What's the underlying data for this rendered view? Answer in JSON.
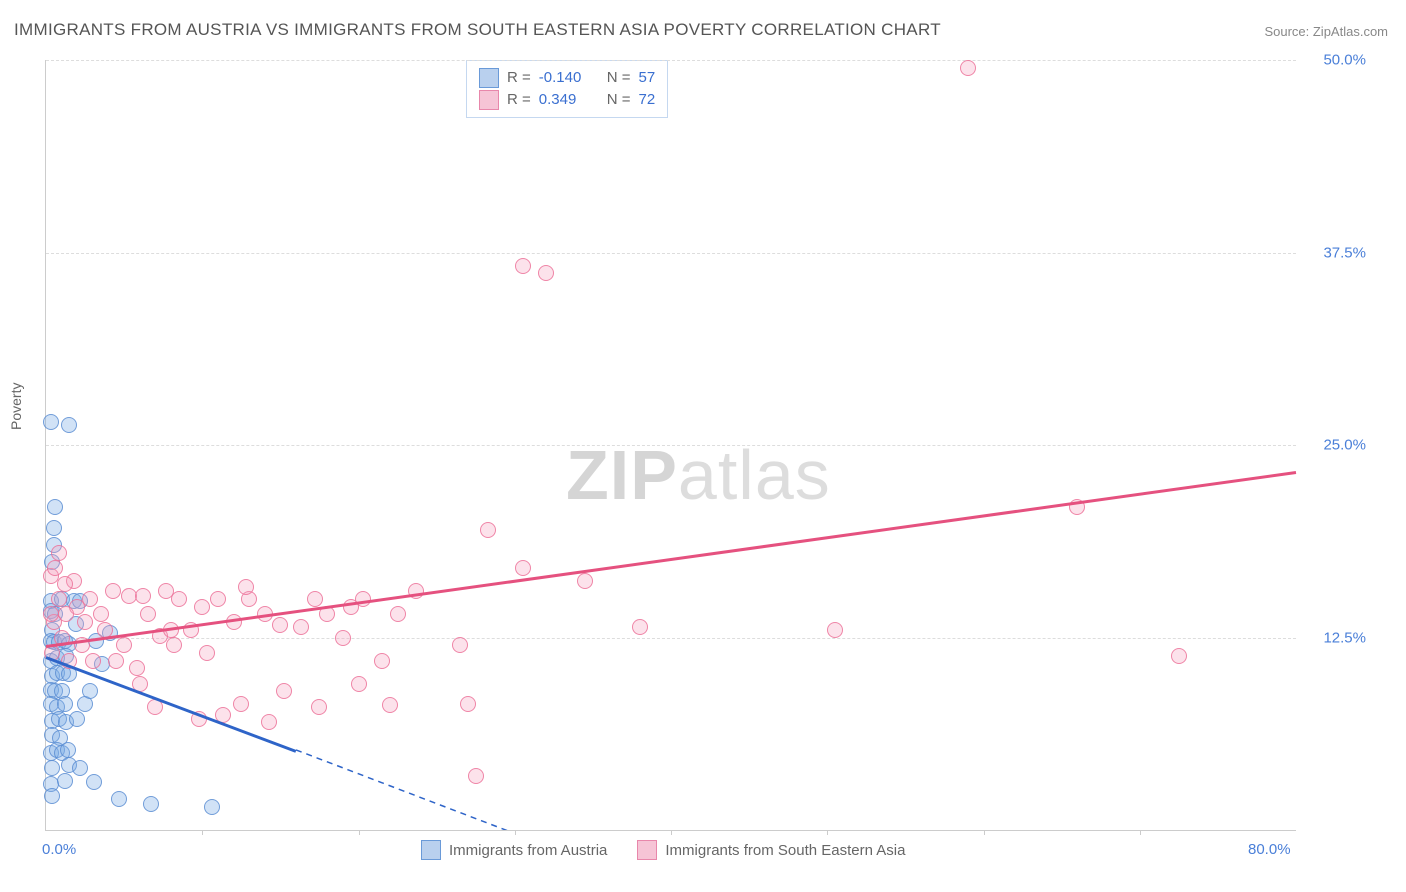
{
  "title": "IMMIGRANTS FROM AUSTRIA VS IMMIGRANTS FROM SOUTH EASTERN ASIA POVERTY CORRELATION CHART",
  "source": "Source: ZipAtlas.com",
  "ylabel": "Poverty",
  "watermark_zip": "ZIP",
  "watermark_atlas": "atlas",
  "chart": {
    "type": "scatter",
    "background_color": "#ffffff",
    "grid_color": "#dddddd",
    "axis_color": "#cccccc",
    "tick_color": "#4a7fd8",
    "xlim": [
      0,
      80
    ],
    "ylim": [
      0,
      50
    ],
    "yticks": [
      12.5,
      25.0,
      37.5,
      50.0
    ],
    "ytick_labels": [
      "12.5%",
      "25.0%",
      "37.5%",
      "50.0%"
    ],
    "xticks": [
      0,
      80
    ],
    "xtick_labels": [
      "0.0%",
      "80.0%"
    ],
    "xtick_marks": [
      10,
      20,
      30,
      40,
      50,
      60,
      70
    ],
    "marker_radius": 7,
    "series": [
      {
        "name": "Immigrants from Austria",
        "fill": "rgba(122,171,230,0.35)",
        "stroke": "rgba(90,140,210,0.8)",
        "swatch_fill": "#b9d0ee",
        "swatch_stroke": "#6a9ad8",
        "R": "-0.140",
        "N": "57",
        "trend": {
          "x1": 0,
          "y1": 11.3,
          "x2": 16,
          "y2": 5.2,
          "color": "#2e64c8",
          "solid_until_x": 16,
          "dash_to_x": 32,
          "dash_to_y": -1
        },
        "points": [
          [
            0.3,
            26.5
          ],
          [
            1.5,
            26.3
          ],
          [
            0.6,
            21.0
          ],
          [
            0.5,
            19.6
          ],
          [
            0.5,
            18.5
          ],
          [
            0.4,
            17.4
          ],
          [
            0.3,
            14.9
          ],
          [
            1.0,
            15.0
          ],
          [
            1.8,
            14.9
          ],
          [
            2.2,
            14.9
          ],
          [
            0.3,
            14.2
          ],
          [
            0.6,
            14.0
          ],
          [
            0.4,
            13.0
          ],
          [
            1.9,
            13.4
          ],
          [
            0.3,
            12.3
          ],
          [
            0.5,
            12.2
          ],
          [
            0.8,
            12.2
          ],
          [
            1.2,
            12.3
          ],
          [
            1.5,
            12.1
          ],
          [
            0.3,
            11.0
          ],
          [
            0.7,
            11.2
          ],
          [
            1.3,
            11.3
          ],
          [
            4.1,
            12.8
          ],
          [
            3.2,
            12.3
          ],
          [
            0.4,
            10.0
          ],
          [
            0.7,
            10.2
          ],
          [
            1.1,
            10.2
          ],
          [
            1.5,
            10.1
          ],
          [
            0.3,
            9.1
          ],
          [
            0.6,
            9.0
          ],
          [
            1.0,
            9.0
          ],
          [
            0.3,
            8.2
          ],
          [
            0.7,
            8.0
          ],
          [
            1.2,
            8.2
          ],
          [
            2.5,
            8.2
          ],
          [
            0.4,
            7.1
          ],
          [
            0.8,
            7.2
          ],
          [
            1.3,
            7.0
          ],
          [
            2.0,
            7.2
          ],
          [
            0.4,
            6.2
          ],
          [
            0.9,
            6.0
          ],
          [
            0.3,
            5.0
          ],
          [
            0.7,
            5.2
          ],
          [
            1.0,
            5.0
          ],
          [
            1.4,
            5.2
          ],
          [
            0.4,
            4.0
          ],
          [
            1.5,
            4.2
          ],
          [
            2.2,
            4.0
          ],
          [
            0.3,
            3.0
          ],
          [
            1.2,
            3.2
          ],
          [
            3.1,
            3.1
          ],
          [
            0.4,
            2.2
          ],
          [
            4.7,
            2.0
          ],
          [
            6.7,
            1.7
          ],
          [
            10.6,
            1.5
          ],
          [
            3.6,
            10.8
          ],
          [
            2.8,
            9.0
          ]
        ]
      },
      {
        "name": "Immigrants from South Eastern Asia",
        "fill": "rgba(245,160,190,0.3)",
        "stroke": "rgba(235,110,150,0.8)",
        "swatch_fill": "#f6c4d6",
        "swatch_stroke": "#e887ab",
        "R": "0.349",
        "N": "72",
        "trend": {
          "x1": 0,
          "y1": 12.0,
          "x2": 80,
          "y2": 23.3,
          "color": "#e5517f"
        },
        "points": [
          [
            59.0,
            49.5
          ],
          [
            30.5,
            36.6
          ],
          [
            32.0,
            36.2
          ],
          [
            66.0,
            21.0
          ],
          [
            72.5,
            11.3
          ],
          [
            50.5,
            13.0
          ],
          [
            38.0,
            13.2
          ],
          [
            34.5,
            16.2
          ],
          [
            30.5,
            17.0
          ],
          [
            28.3,
            19.5
          ],
          [
            26.5,
            12.0
          ],
          [
            27.0,
            8.2
          ],
          [
            23.7,
            15.5
          ],
          [
            22.0,
            8.1
          ],
          [
            22.5,
            14.0
          ],
          [
            20.3,
            15.0
          ],
          [
            21.5,
            11.0
          ],
          [
            20.0,
            9.5
          ],
          [
            19.0,
            12.5
          ],
          [
            18.0,
            14.0
          ],
          [
            17.2,
            15.0
          ],
          [
            16.3,
            13.2
          ],
          [
            15.2,
            9.0
          ],
          [
            15.0,
            13.3
          ],
          [
            14.3,
            7.0
          ],
          [
            14.0,
            14.0
          ],
          [
            13.0,
            15.0
          ],
          [
            12.5,
            8.2
          ],
          [
            12.0,
            13.5
          ],
          [
            11.3,
            7.5
          ],
          [
            11.0,
            15.0
          ],
          [
            10.3,
            11.5
          ],
          [
            10.0,
            14.5
          ],
          [
            9.8,
            7.2
          ],
          [
            9.3,
            13.0
          ],
          [
            8.5,
            15.0
          ],
          [
            8.2,
            12.0
          ],
          [
            7.7,
            15.5
          ],
          [
            7.3,
            12.6
          ],
          [
            7.0,
            8.0
          ],
          [
            6.5,
            14.0
          ],
          [
            6.0,
            9.5
          ],
          [
            5.8,
            10.5
          ],
          [
            5.3,
            15.2
          ],
          [
            5.0,
            12.0
          ],
          [
            4.5,
            11.0
          ],
          [
            4.3,
            15.5
          ],
          [
            3.8,
            13.0
          ],
          [
            3.5,
            14.0
          ],
          [
            3.0,
            11.0
          ],
          [
            2.8,
            15.0
          ],
          [
            2.5,
            13.5
          ],
          [
            2.3,
            12.0
          ],
          [
            2.0,
            14.5
          ],
          [
            1.8,
            16.2
          ],
          [
            1.5,
            11.0
          ],
          [
            1.3,
            14.0
          ],
          [
            1.0,
            12.5
          ],
          [
            0.8,
            15.0
          ],
          [
            0.5,
            13.5
          ],
          [
            0.3,
            16.5
          ],
          [
            0.3,
            14.0
          ],
          [
            0.6,
            17.0
          ],
          [
            1.2,
            16.0
          ],
          [
            0.4,
            11.5
          ],
          [
            0.8,
            18.0
          ],
          [
            27.5,
            3.5
          ],
          [
            8.0,
            13.0
          ],
          [
            12.8,
            15.8
          ],
          [
            17.5,
            8.0
          ],
          [
            19.5,
            14.5
          ],
          [
            6.2,
            15.2
          ]
        ]
      }
    ]
  }
}
